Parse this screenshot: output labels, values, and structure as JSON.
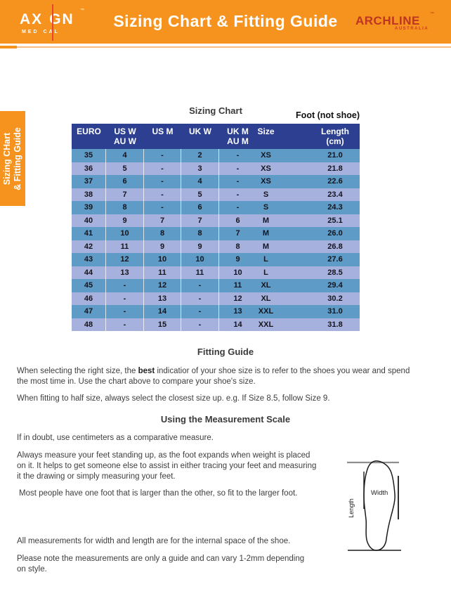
{
  "header": {
    "title": "Sizing Chart & Fitting Guide",
    "axign_logo": {
      "part1": "AX",
      "part2": "GN",
      "tm": "™",
      "sub1": "MED",
      "sub2": "CAL"
    },
    "archline_logo": {
      "name": "ARCHLINE",
      "tm": "™",
      "sub": "AUSTRALIA"
    }
  },
  "side_tab": {
    "line1": "Sizing CHart",
    "line2": "& Fitting Guide"
  },
  "sizing_chart": {
    "title": "Sizing Chart",
    "foot_note": "Foot (not shoe)",
    "columns": [
      {
        "line1": "EURO",
        "line2": ""
      },
      {
        "line1": "US W",
        "line2": "AU W"
      },
      {
        "line1": "US M",
        "line2": ""
      },
      {
        "line1": "UK W",
        "line2": ""
      },
      {
        "line1": "UK M",
        "line2": "AU M"
      },
      {
        "line1": "Size",
        "line2": ""
      },
      {
        "line1": "Length",
        "line2": "(cm)"
      }
    ],
    "rows": [
      [
        "35",
        "4",
        "-",
        "2",
        "-",
        "XS",
        "21.0"
      ],
      [
        "36",
        "5",
        "-",
        "3",
        "-",
        "XS",
        "21.8"
      ],
      [
        "37",
        "6",
        "-",
        "4",
        "-",
        "XS",
        "22.6"
      ],
      [
        "38",
        "7",
        "-",
        "5",
        "-",
        "S",
        "23.4"
      ],
      [
        "39",
        "8",
        "-",
        "6",
        "-",
        "S",
        "24.3"
      ],
      [
        "40",
        "9",
        "7",
        "7",
        "6",
        "M",
        "25.1"
      ],
      [
        "41",
        "10",
        "8",
        "8",
        "7",
        "M",
        "26.0"
      ],
      [
        "42",
        "11",
        "9",
        "9",
        "8",
        "M",
        "26.8"
      ],
      [
        "43",
        "12",
        "10",
        "10",
        "9",
        "L",
        "27.6"
      ],
      [
        "44",
        "13",
        "11",
        "11",
        "10",
        "L",
        "28.5"
      ],
      [
        "45",
        "-",
        "12",
        "-",
        "11",
        "XL",
        "29.4"
      ],
      [
        "46",
        "-",
        "13",
        "-",
        "12",
        "XL",
        "30.2"
      ],
      [
        "47",
        "-",
        "14",
        "-",
        "13",
        "XXL",
        "31.0"
      ],
      [
        "48",
        "-",
        "15",
        "-",
        "14",
        "XXL",
        "31.8"
      ]
    ]
  },
  "fitting_guide": {
    "title": "Fitting Guide",
    "p1_pre": "When selecting the right size, the ",
    "p1_bold": "best",
    "p1_post": " indicatior of your shoe size is to refer to the shoes you wear and spend",
    "p1_line2": "the most time in. Use the chart above to compare your shoe's size.",
    "p2": "When fitting to half size, always select the closest size up. e.g. If Size 8.5, follow Size 9."
  },
  "measurement": {
    "title": "Using the Measurement Scale",
    "p1": "If in doubt, use centimeters as a comparative measure.",
    "p2_l1": "Always measure your feet standing up, as the foot expands when weight is placed",
    "p2_l2": "on it. It helps to get someone else to assist in either tracing your feet and measuring",
    "p2_l3": "it the drawing or simply measuring your feet.",
    "p3": "Most people have one foot that is larger than the other, so fit to the larger foot.",
    "p4": "All measurements for width and length are for the internal space of the shoe.",
    "p5_l1": "Please note the measurements are only a guide and can vary 1-2mm depending",
    "p5_l2": "on style.",
    "diagram": {
      "width_label": "Width",
      "length_label": "Length"
    }
  },
  "colors": {
    "brand_orange": "#F6921E",
    "rule_light_orange": "#F8BE7E",
    "axign_red": "#E8462F",
    "archline_red": "#BE3425",
    "table_header_blue": "#2D3F91",
    "row_steel_blue": "#5E9CC7",
    "row_lavender": "#A7B1DD"
  }
}
